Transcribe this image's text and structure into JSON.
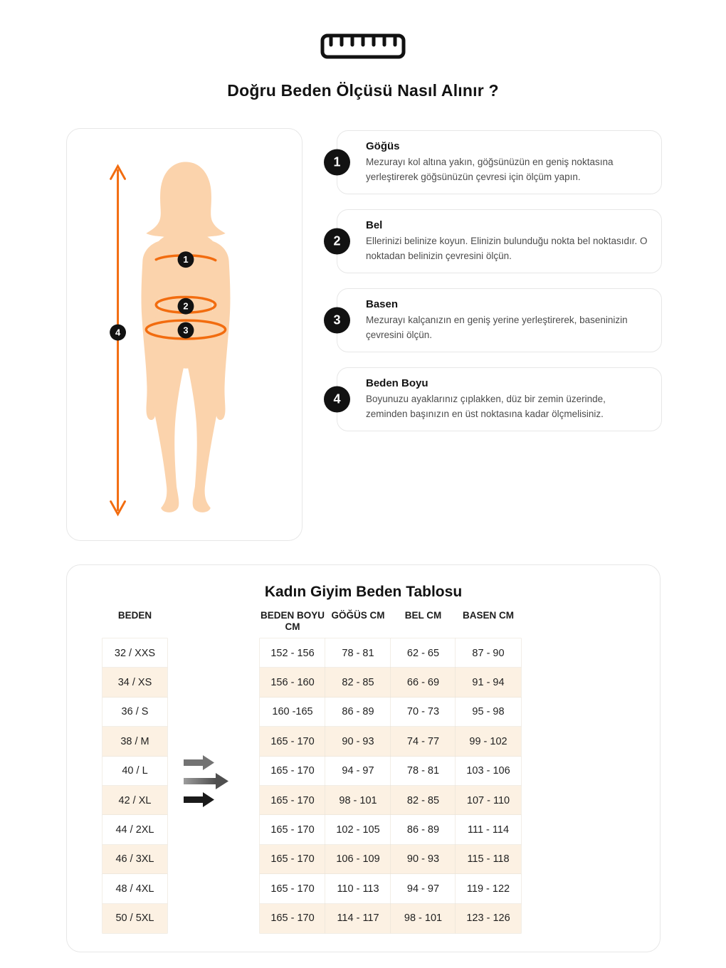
{
  "page": {
    "title": "Doğru Beden Ölçüsü Nasıl Alınır ?"
  },
  "icons": {
    "header": "ruler-icon",
    "table_decoration": "right-arrows-icon"
  },
  "colors": {
    "accent_orange": "#f26c0f",
    "skin": "#fbd3ac",
    "badge_black": "#121212",
    "shaded_row": "#fcf1e3",
    "card_border": "#e7e7e7"
  },
  "figure": {
    "badges": [
      "1",
      "2",
      "3",
      "4"
    ]
  },
  "instructions": [
    {
      "number": "1",
      "title": "Göğüs",
      "text": "Mezurayı kol altına yakın, göğsünüzün en geniş noktasına yerleştirerek göğsünüzün çevresi için ölçüm yapın."
    },
    {
      "number": "2",
      "title": "Bel",
      "text": "Ellerinizi belinize koyun. Elinizin bulunduğu nokta bel noktasıdır. O noktadan belinizin çevresini ölçün."
    },
    {
      "number": "3",
      "title": "Basen",
      "text": "Mezurayı kalçanızın en geniş yerine yerleştirerek, baseninizin çevresini ölçün."
    },
    {
      "number": "4",
      "title": "Beden Boyu",
      "text": "Boyunuzu ayaklarınız çıplakken, düz bir zemin üzerinde, zeminden başınızın en üst noktasına kadar ölçmelisiniz."
    }
  ],
  "size_table": {
    "title": "Kadın Giyim Beden Tablosu",
    "columns": [
      "BEDEN",
      "BEDEN BOYU CM",
      "GÖĞÜS CM",
      "BEL CM",
      "BASEN CM"
    ],
    "rows": [
      {
        "shaded": false,
        "cells": [
          "32 / XXS",
          "152 - 156",
          "78 - 81",
          "62 - 65",
          "87 - 90"
        ]
      },
      {
        "shaded": true,
        "cells": [
          "34 / XS",
          "156 - 160",
          "82 - 85",
          "66 - 69",
          "91 - 94"
        ]
      },
      {
        "shaded": false,
        "cells": [
          "36 / S",
          "160 -165",
          "86 - 89",
          "70 - 73",
          "95 - 98"
        ]
      },
      {
        "shaded": true,
        "cells": [
          "38 / M",
          "165 - 170",
          "90 - 93",
          "74 - 77",
          "99 - 102"
        ]
      },
      {
        "shaded": false,
        "cells": [
          "40 / L",
          "165 - 170",
          "94 - 97",
          "78 - 81",
          "103 - 106"
        ]
      },
      {
        "shaded": true,
        "cells": [
          "42 / XL",
          "165 - 170",
          "98 - 101",
          "82 - 85",
          "107 - 110"
        ]
      },
      {
        "shaded": false,
        "cells": [
          "44 / 2XL",
          "165 - 170",
          "102 - 105",
          "86 - 89",
          "111 - 114"
        ]
      },
      {
        "shaded": true,
        "cells": [
          "46 / 3XL",
          "165 - 170",
          "106 - 109",
          "90 - 93",
          "115 - 118"
        ]
      },
      {
        "shaded": false,
        "cells": [
          "48 / 4XL",
          "165 - 170",
          "110 - 113",
          "94 - 97",
          "119 - 122"
        ]
      },
      {
        "shaded": true,
        "cells": [
          "50 / 5XL",
          "165 - 170",
          "114 - 117",
          "98 - 101",
          "123 - 126"
        ]
      }
    ]
  }
}
